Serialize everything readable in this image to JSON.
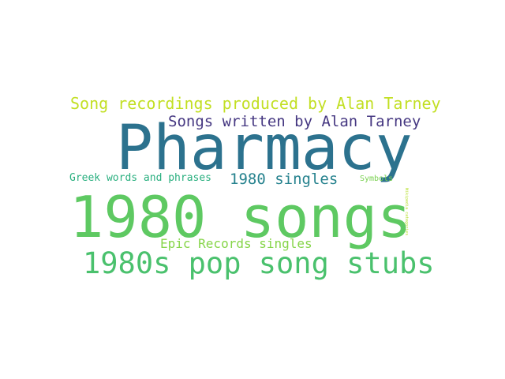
{
  "words": [
    {
      "text": "Pharmacy",
      "color": "#2c728e"
    },
    {
      "text": "1980 songs",
      "color": "#5ec962"
    },
    {
      "text": "1980s pop song stubs",
      "color": "#4ac16d"
    },
    {
      "text": "Song recordings produced by Alan Tarney",
      "color": "#c2df23"
    },
    {
      "text": "Songs written by Alan Tarney",
      "color": "#453781"
    },
    {
      "text": "1980 singles",
      "color": "#26828e"
    },
    {
      "text": "Greek words and phrases",
      "color": "#29af7f"
    },
    {
      "text": "Epic Records singles",
      "color": "#86d549"
    },
    {
      "text": "Symbols",
      "color": "#7ad151"
    },
    {
      "text": "Wikipedia categories",
      "color": "#b5de2b"
    }
  ]
}
